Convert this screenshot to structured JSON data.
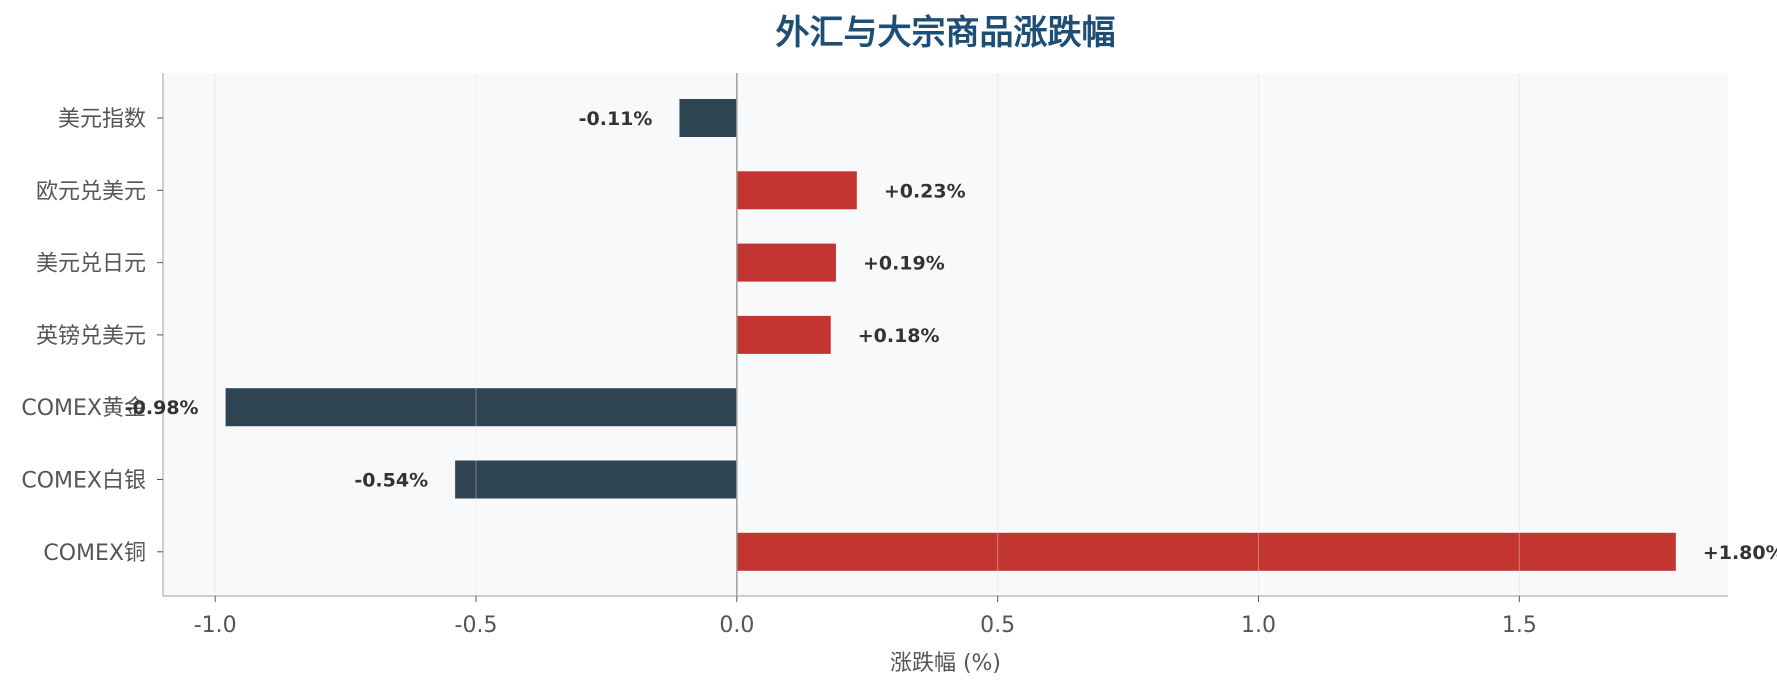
{
  "chart_data": {
    "type": "bar",
    "orientation": "horizontal",
    "title": "外汇与大宗商品涨跌幅",
    "xlabel": "涨跌幅 (%)",
    "ylabel": "",
    "categories": [
      "美元指数",
      "欧元兑美元",
      "美元兑日元",
      "英镑兑美元",
      "COMEX黄金",
      "COMEX白银",
      "COMEX铜"
    ],
    "values": [
      -0.11,
      0.23,
      0.19,
      0.18,
      -0.98,
      -0.54,
      1.8
    ],
    "data_labels": [
      "-0.11%",
      "+0.23%",
      "+0.19%",
      "+0.18%",
      "-0.98%",
      "-0.54%",
      "+1.80%"
    ],
    "xlim": [
      -1.1,
      1.9
    ],
    "xticks": [
      -1.0,
      -0.5,
      0.0,
      0.5,
      1.0,
      1.5
    ],
    "xtick_labels": [
      "-1.0",
      "-0.5",
      "0.0",
      "0.5",
      "1.0",
      "1.5"
    ],
    "grid": "vertical",
    "legend": "none"
  },
  "colors": {
    "positive": "#c23531",
    "negative": "#2e4453",
    "title": "#1d4e75",
    "plot_background": "#f8f9fb",
    "grid": "#e3e5e8",
    "axis": "#bdbdbd",
    "zero_line": "#9e9e9e",
    "text": "#555555",
    "label_text": "#333333"
  }
}
